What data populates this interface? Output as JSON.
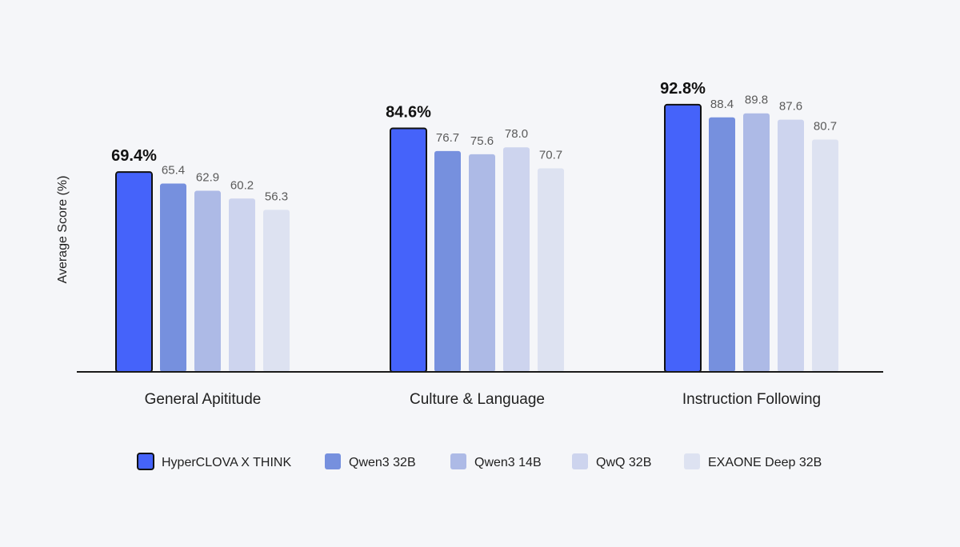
{
  "chart_data": {
    "type": "bar",
    "ylabel": "Average Score (%)",
    "xlabel": "",
    "ylim": [
      0,
      100
    ],
    "grid": false,
    "legend_position": "bottom",
    "categories": [
      "General Apititude",
      "Culture & Language",
      "Instruction Following"
    ],
    "series": [
      {
        "name": "HyperCLOVA X THINK",
        "color": "#4563fa",
        "highlight": true,
        "values": [
          69.4,
          84.6,
          92.8
        ],
        "labels": [
          "69.4%",
          "84.6%",
          "92.8%"
        ]
      },
      {
        "name": "Qwen3 32B",
        "color": "#7690de",
        "highlight": false,
        "values": [
          65.4,
          76.7,
          88.4
        ],
        "labels": [
          "65.4",
          "76.7",
          "88.4"
        ]
      },
      {
        "name": "Qwen3 14B",
        "color": "#adbae6",
        "highlight": false,
        "values": [
          62.9,
          75.6,
          89.8
        ],
        "labels": [
          "62.9",
          "75.6",
          "89.8"
        ]
      },
      {
        "name": "QwQ 32B",
        "color": "#cdd4ee",
        "highlight": false,
        "values": [
          60.2,
          78.0,
          87.6
        ],
        "labels": [
          "60.2",
          "78.0",
          "87.6"
        ]
      },
      {
        "name": "EXAONE Deep 32B",
        "color": "#dde2f1",
        "highlight": false,
        "values": [
          56.3,
          70.7,
          80.7
        ],
        "labels": [
          "56.3",
          "70.7",
          "80.7"
        ]
      }
    ]
  }
}
